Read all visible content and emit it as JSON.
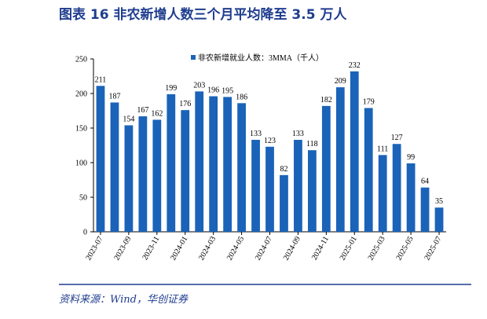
{
  "chart_data": {
    "type": "bar",
    "title": "图表 16    非农新增人数三个月平均降至 3.5 万人",
    "source": "资料来源：Wind，华创证券",
    "categories": [
      "2023-07",
      null,
      "2023-09",
      null,
      "2023-11",
      null,
      "2024-01",
      null,
      "2024-03",
      null,
      "2024-05",
      null,
      "2024-07",
      null,
      "2024-09",
      null,
      "2024-11",
      null,
      "2025-01",
      null,
      "2025-03",
      null,
      "2025-05",
      null,
      "2025-07"
    ],
    "series": [
      {
        "name": "非农新增就业人数：3MMA（千人）",
        "color": "#1a63b8",
        "values": [
          211,
          187,
          154,
          167,
          162,
          199,
          176,
          203,
          196,
          195,
          186,
          133,
          123,
          82,
          133,
          118,
          182,
          209,
          232,
          179,
          111,
          127,
          99,
          64,
          35
        ]
      }
    ],
    "ylim": [
      0,
      250
    ],
    "yticks": [
      0,
      50,
      100,
      150,
      200,
      250
    ],
    "grid": false,
    "legend": "top"
  }
}
